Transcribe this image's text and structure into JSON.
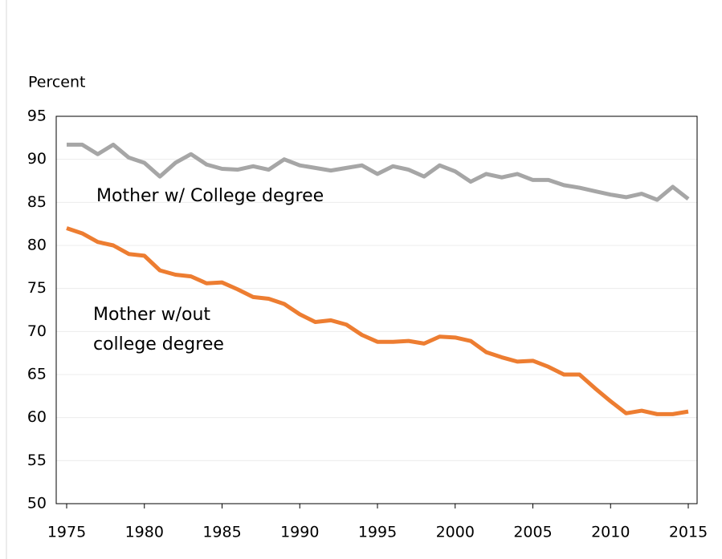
{
  "chart_data": {
    "type": "line",
    "y_label": "Percent",
    "x": [
      1975,
      1976,
      1977,
      1978,
      1979,
      1980,
      1981,
      1982,
      1983,
      1984,
      1985,
      1986,
      1987,
      1988,
      1989,
      1990,
      1991,
      1992,
      1993,
      1994,
      1995,
      1996,
      1997,
      1998,
      1999,
      2000,
      2001,
      2002,
      2003,
      2004,
      2005,
      2006,
      2007,
      2008,
      2009,
      2010,
      2011,
      2012,
      2013,
      2014,
      2015
    ],
    "series": [
      {
        "name": "Mother w/ College degree",
        "color": "#a6a6a6",
        "values": [
          91.7,
          91.7,
          90.6,
          91.7,
          90.2,
          89.6,
          88.0,
          89.6,
          90.6,
          89.4,
          88.9,
          88.8,
          89.2,
          88.8,
          90.0,
          89.3,
          89.0,
          88.7,
          89.0,
          89.3,
          88.3,
          89.2,
          88.8,
          88.0,
          89.3,
          88.6,
          87.4,
          88.3,
          87.9,
          88.3,
          87.6,
          87.6,
          87.0,
          86.7,
          86.3,
          85.9,
          85.6,
          86.0,
          85.3,
          86.8,
          85.4
        ]
      },
      {
        "name": "Mother w/out college degree",
        "label_lines": [
          "Mother w/out",
          "college degree"
        ],
        "color": "#ed7d31",
        "values": [
          82.0,
          81.4,
          80.4,
          80.0,
          79.0,
          78.8,
          77.1,
          76.6,
          76.4,
          75.6,
          75.7,
          74.9,
          74.0,
          73.8,
          73.2,
          72.0,
          71.1,
          71.3,
          70.8,
          69.6,
          68.8,
          68.8,
          68.9,
          68.6,
          69.4,
          69.3,
          68.9,
          67.6,
          67.0,
          66.5,
          66.6,
          65.9,
          65.0,
          65.0,
          63.4,
          61.9,
          60.5,
          60.8,
          60.4,
          60.4,
          60.7
        ]
      }
    ],
    "xlim": [
      1975,
      2015
    ],
    "xticks": [
      1975,
      1980,
      1985,
      1990,
      1995,
      2000,
      2005,
      2010,
      2015
    ],
    "ylim": [
      50,
      95
    ],
    "yticks": [
      50,
      55,
      60,
      65,
      70,
      75,
      80,
      85,
      90,
      95
    ],
    "grid": true
  }
}
